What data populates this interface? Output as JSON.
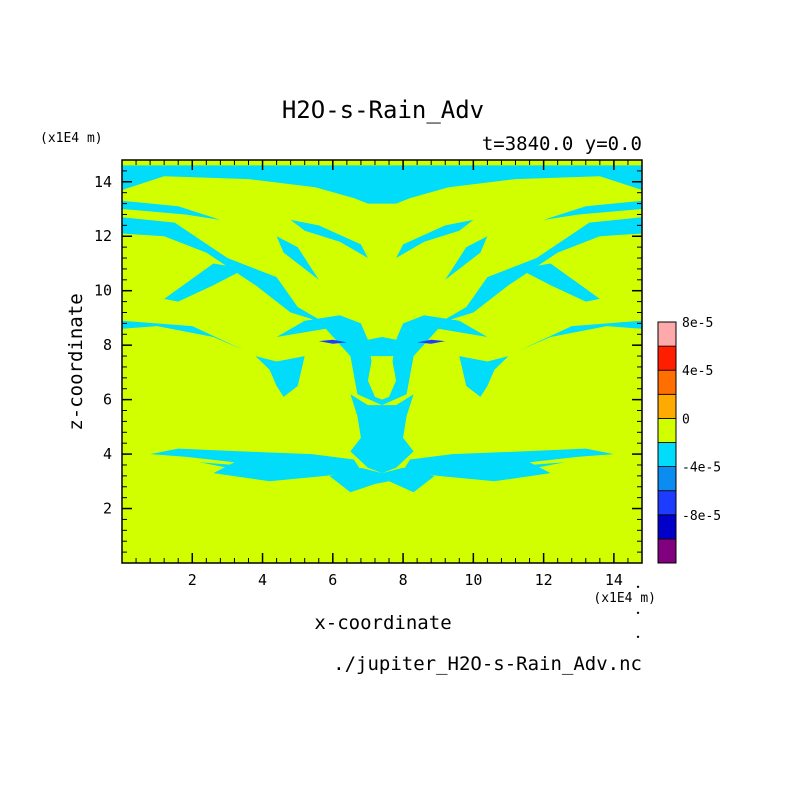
{
  "chart_data": {
    "type": "heatmap",
    "title": "H2O-s-Rain_Adv",
    "subtitle": "t=3840.0 y=0.0",
    "xlabel": "x-coordinate",
    "ylabel": "z-coordinate",
    "x_unit": "(x1E4 m)",
    "y_unit": "(x1E4 m)",
    "footer": "./jupiter_H2O-s-Rain_Adv.nc",
    "xlim": [
      0,
      14.8
    ],
    "ylim": [
      0,
      14.8
    ],
    "x_ticks": [
      2,
      4,
      6,
      8,
      10,
      12,
      14
    ],
    "y_ticks": [
      2,
      4,
      6,
      8,
      10,
      12,
      14
    ],
    "background_level": 0,
    "colorbar": {
      "levels": [
        {
          "label": "",
          "color": "#800080"
        },
        {
          "label": "-8e-5",
          "color": "#0000c8"
        },
        {
          "label": "",
          "color": "#1e3cff"
        },
        {
          "label": "-4e-5",
          "color": "#0a8cf0"
        },
        {
          "label": "",
          "color": "#00dcfa"
        },
        {
          "label": "0",
          "color": "#d2ff00"
        },
        {
          "label": "",
          "color": "#ffaa00"
        },
        {
          "label": "4e-5",
          "color": "#ff6e00"
        },
        {
          "label": "",
          "color": "#ff1e00"
        },
        {
          "label": "8e-5",
          "color": "#ffaaaa"
        }
      ]
    },
    "negative_regions_color": "#00dcfa",
    "negative_regions_level": "-2e-5 to 0",
    "negative_regions": [
      [
        [
          0,
          13.7
        ],
        [
          1.2,
          14.2
        ],
        [
          3.6,
          14.1
        ],
        [
          5.5,
          13.8
        ],
        [
          6.6,
          13.4
        ],
        [
          7.0,
          13.2
        ],
        [
          7.4,
          13.2
        ],
        [
          7.8,
          13.2
        ],
        [
          8.2,
          13.4
        ],
        [
          9.3,
          13.8
        ],
        [
          11.2,
          14.1
        ],
        [
          13.6,
          14.2
        ],
        [
          14.8,
          13.7
        ],
        [
          14.8,
          14.6
        ],
        [
          0,
          14.6
        ]
      ],
      [
        [
          0,
          12.7
        ],
        [
          1.5,
          12.5
        ],
        [
          3.0,
          11.2
        ],
        [
          4.4,
          10.5
        ],
        [
          5.0,
          9.4
        ],
        [
          5.8,
          8.8
        ],
        [
          4.8,
          9.2
        ],
        [
          3.8,
          10.2
        ],
        [
          2.4,
          11.4
        ],
        [
          1.2,
          12.0
        ],
        [
          0,
          12.1
        ]
      ],
      [
        [
          14.8,
          12.7
        ],
        [
          13.3,
          12.5
        ],
        [
          11.8,
          11.2
        ],
        [
          10.4,
          10.5
        ],
        [
          9.8,
          9.4
        ],
        [
          9.0,
          8.8
        ],
        [
          10.0,
          9.2
        ],
        [
          11.0,
          10.2
        ],
        [
          12.4,
          11.4
        ],
        [
          13.6,
          12.0
        ],
        [
          14.8,
          12.1
        ]
      ],
      [
        [
          0,
          8.9
        ],
        [
          2.0,
          8.7
        ],
        [
          3.5,
          7.8
        ],
        [
          2.6,
          8.3
        ],
        [
          1.0,
          8.7
        ],
        [
          0,
          8.6
        ]
      ],
      [
        [
          14.8,
          8.9
        ],
        [
          12.8,
          8.7
        ],
        [
          11.3,
          7.8
        ],
        [
          12.2,
          8.3
        ],
        [
          13.8,
          8.7
        ],
        [
          14.8,
          8.6
        ]
      ],
      [
        [
          1.2,
          9.7
        ],
        [
          2.6,
          11.0
        ],
        [
          3.5,
          10.8
        ],
        [
          2.6,
          10.2
        ],
        [
          1.6,
          9.6
        ]
      ],
      [
        [
          13.6,
          9.7
        ],
        [
          12.2,
          11.0
        ],
        [
          11.3,
          10.8
        ],
        [
          12.2,
          10.2
        ],
        [
          13.2,
          9.6
        ]
      ],
      [
        [
          4.8,
          12.6
        ],
        [
          5.6,
          12.4
        ],
        [
          6.8,
          11.7
        ],
        [
          7.0,
          11.2
        ],
        [
          6.2,
          11.8
        ],
        [
          5.2,
          12.2
        ]
      ],
      [
        [
          10.0,
          12.6
        ],
        [
          9.2,
          12.4
        ],
        [
          8.0,
          11.7
        ],
        [
          7.8,
          11.2
        ],
        [
          8.6,
          11.8
        ],
        [
          9.6,
          12.2
        ]
      ],
      [
        [
          5.2,
          8.9
        ],
        [
          6.2,
          9.1
        ],
        [
          6.8,
          8.8
        ],
        [
          7.0,
          8.2
        ],
        [
          7.1,
          7.4
        ],
        [
          7.0,
          6.7
        ],
        [
          7.2,
          6.1
        ],
        [
          7.4,
          6.0
        ],
        [
          7.6,
          6.1
        ],
        [
          7.8,
          6.7
        ],
        [
          7.7,
          7.4
        ],
        [
          7.8,
          8.2
        ],
        [
          8.0,
          8.8
        ],
        [
          8.6,
          9.1
        ],
        [
          9.6,
          8.9
        ],
        [
          10.4,
          8.3
        ],
        [
          9.0,
          8.6
        ],
        [
          8.3,
          7.6
        ],
        [
          8.1,
          6.2
        ],
        [
          7.4,
          5.8
        ],
        [
          6.7,
          6.2
        ],
        [
          6.5,
          7.6
        ],
        [
          5.8,
          8.6
        ],
        [
          4.4,
          8.3
        ]
      ],
      [
        [
          6.5,
          6.2
        ],
        [
          7.0,
          5.8
        ],
        [
          7.8,
          5.8
        ],
        [
          8.3,
          6.2
        ],
        [
          8.1,
          5.4
        ],
        [
          8.0,
          4.6
        ],
        [
          8.3,
          4.1
        ],
        [
          7.8,
          3.5
        ],
        [
          7.4,
          3.3
        ],
        [
          7.0,
          3.5
        ],
        [
          6.5,
          4.1
        ],
        [
          6.8,
          4.6
        ],
        [
          6.7,
          5.4
        ]
      ],
      [
        [
          0.8,
          4.0
        ],
        [
          1.6,
          4.2
        ],
        [
          3.4,
          4.1
        ],
        [
          5.4,
          4.0
        ],
        [
          6.6,
          3.8
        ],
        [
          6.8,
          3.4
        ],
        [
          5.8,
          3.2
        ],
        [
          4.2,
          3.0
        ],
        [
          2.6,
          3.3
        ],
        [
          3.2,
          3.7
        ],
        [
          1.8,
          3.9
        ]
      ],
      [
        [
          14.0,
          4.0
        ],
        [
          13.2,
          4.2
        ],
        [
          11.4,
          4.1
        ],
        [
          9.4,
          4.0
        ],
        [
          8.2,
          3.8
        ],
        [
          8.0,
          3.4
        ],
        [
          9.0,
          3.2
        ],
        [
          10.6,
          3.0
        ],
        [
          12.2,
          3.3
        ],
        [
          11.6,
          3.7
        ],
        [
          13.0,
          3.9
        ]
      ],
      [
        [
          5.9,
          3.2
        ],
        [
          6.5,
          2.6
        ],
        [
          7.2,
          2.9
        ],
        [
          7.6,
          3.0
        ],
        [
          8.3,
          2.6
        ],
        [
          8.9,
          3.2
        ],
        [
          8.0,
          3.5
        ],
        [
          7.4,
          3.3
        ],
        [
          6.8,
          3.5
        ]
      ],
      [
        [
          3.8,
          7.6
        ],
        [
          4.4,
          7.4
        ],
        [
          5.2,
          7.6
        ],
        [
          5.0,
          6.5
        ],
        [
          4.6,
          6.1
        ],
        [
          4.4,
          6.5
        ],
        [
          4.2,
          7.1
        ]
      ],
      [
        [
          11.0,
          7.6
        ],
        [
          10.4,
          7.4
        ],
        [
          9.6,
          7.6
        ],
        [
          9.8,
          6.5
        ],
        [
          10.2,
          6.1
        ],
        [
          10.4,
          6.5
        ],
        [
          10.6,
          7.1
        ]
      ],
      [
        [
          4.4,
          12.0
        ],
        [
          5.0,
          11.6
        ],
        [
          5.6,
          10.4
        ],
        [
          5.2,
          10.8
        ],
        [
          4.6,
          11.4
        ]
      ],
      [
        [
          10.4,
          12.0
        ],
        [
          9.8,
          11.6
        ],
        [
          9.2,
          10.4
        ],
        [
          9.6,
          10.8
        ],
        [
          10.2,
          11.4
        ]
      ],
      [
        [
          0,
          13.3
        ],
        [
          1.6,
          13.1
        ],
        [
          2.8,
          12.6
        ],
        [
          1.8,
          12.8
        ],
        [
          0,
          13.0
        ]
      ],
      [
        [
          14.8,
          13.3
        ],
        [
          13.2,
          13.1
        ],
        [
          12.0,
          12.6
        ],
        [
          13.0,
          12.8
        ],
        [
          14.8,
          13.0
        ]
      ],
      [
        [
          6.2,
          8.0
        ],
        [
          7.0,
          7.6
        ],
        [
          7.8,
          7.6
        ],
        [
          8.6,
          8.0
        ],
        [
          7.4,
          8.3
        ]
      ],
      [
        [
          2.2,
          3.7
        ],
        [
          3.2,
          3.6
        ],
        [
          4.6,
          3.5
        ],
        [
          3.4,
          3.4
        ]
      ],
      [
        [
          12.6,
          3.7
        ],
        [
          11.6,
          3.6
        ],
        [
          10.2,
          3.5
        ],
        [
          11.4,
          3.4
        ]
      ]
    ],
    "dark_regions_color": "#1e3cff",
    "dark_regions": [
      [
        [
          5.6,
          8.15
        ],
        [
          6.0,
          8.2
        ],
        [
          6.4,
          8.1
        ],
        [
          6.0,
          8.05
        ]
      ],
      [
        [
          8.4,
          8.1
        ],
        [
          8.8,
          8.2
        ],
        [
          9.2,
          8.15
        ],
        [
          8.8,
          8.05
        ]
      ]
    ],
    "right_ticks_note": "•"
  }
}
